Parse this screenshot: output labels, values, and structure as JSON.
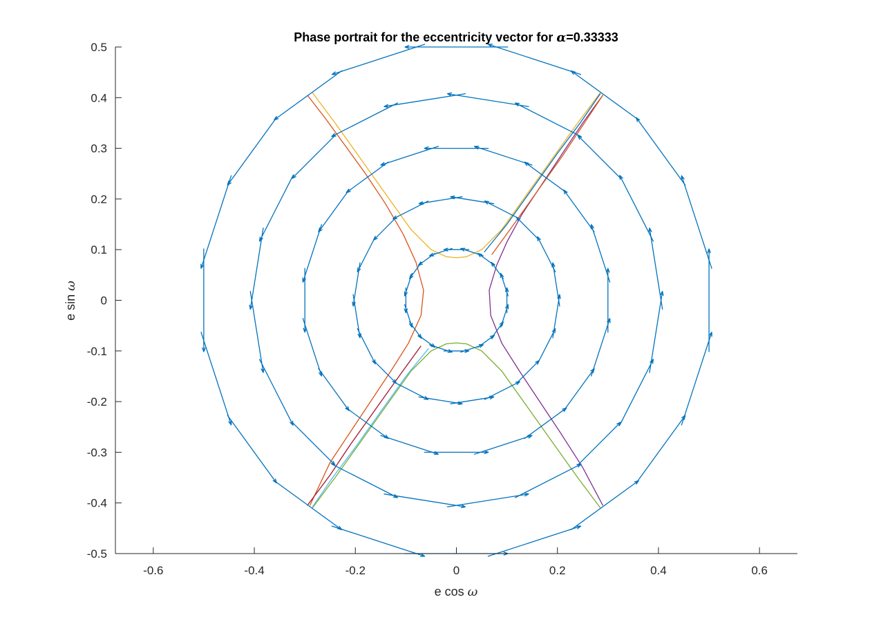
{
  "chart_data": {
    "type": "quiver",
    "title": "Phase portrait for the eccentricity vector for ",
    "title_greek": "α",
    "title_suffix": "=0.33333",
    "xlabel": "e cos ",
    "xlabel_greek": "ω",
    "ylabel": "e sin ",
    "ylabel_greek": "ω",
    "xlim": [
      -0.675,
      0.675
    ],
    "ylim": [
      -0.5,
      0.5
    ],
    "xticks": [
      -0.6,
      -0.4,
      -0.2,
      0,
      0.2,
      0.4,
      0.6
    ],
    "yticks": [
      -0.5,
      -0.4,
      -0.3,
      -0.2,
      -0.1,
      0,
      0.1,
      0.2,
      0.3,
      0.4,
      0.5
    ],
    "xtick_labels": [
      "-0.6",
      "-0.4",
      "-0.2",
      "0",
      "0.2",
      "0.4",
      "0.6"
    ],
    "ytick_labels": [
      "-0.5",
      "-0.4",
      "-0.3",
      "-0.2",
      "-0.1",
      "0",
      "0.1",
      "0.2",
      "0.3",
      "0.4",
      "0.5"
    ],
    "quiver": {
      "radii": [
        0.1,
        0.2,
        0.3,
        0.4,
        0.5
      ],
      "arrows_per_ring": 20,
      "alpha": 0.33333,
      "color": "#0072bd"
    },
    "trajectories": [
      {
        "color": "#d95319",
        "points": [
          [
            -0.295,
            0.405
          ],
          [
            -0.26,
            0.36
          ],
          [
            -0.22,
            0.305
          ],
          [
            -0.18,
            0.25
          ],
          [
            -0.14,
            0.19
          ],
          [
            -0.105,
            0.13
          ],
          [
            -0.08,
            0.075
          ],
          [
            -0.065,
            0.02
          ],
          [
            -0.07,
            -0.03
          ],
          [
            -0.095,
            -0.085
          ],
          [
            -0.13,
            -0.14
          ],
          [
            -0.17,
            -0.2
          ],
          [
            -0.21,
            -0.26
          ],
          [
            -0.25,
            -0.32
          ],
          [
            -0.29,
            -0.405
          ]
        ]
      },
      {
        "color": "#edb120",
        "points": [
          [
            -0.285,
            0.41
          ],
          [
            -0.24,
            0.35
          ],
          [
            -0.19,
            0.28
          ],
          [
            -0.14,
            0.21
          ],
          [
            -0.09,
            0.14
          ],
          [
            -0.05,
            0.1
          ],
          [
            -0.02,
            0.086
          ],
          [
            0,
            0.084
          ],
          [
            0.02,
            0.086
          ],
          [
            0.05,
            0.1
          ],
          [
            0.09,
            0.14
          ],
          [
            0.14,
            0.21
          ],
          [
            0.19,
            0.28
          ],
          [
            0.24,
            0.35
          ],
          [
            0.285,
            0.41
          ]
        ]
      },
      {
        "color": "#7e2f8e",
        "points": [
          [
            0.29,
            0.405
          ],
          [
            0.25,
            0.35
          ],
          [
            0.21,
            0.29
          ],
          [
            0.17,
            0.23
          ],
          [
            0.13,
            0.17
          ],
          [
            0.1,
            0.115
          ],
          [
            0.08,
            0.07
          ],
          [
            0.065,
            0.02
          ],
          [
            0.068,
            -0.03
          ],
          [
            0.09,
            -0.085
          ],
          [
            0.125,
            -0.14
          ],
          [
            0.165,
            -0.2
          ],
          [
            0.205,
            -0.26
          ],
          [
            0.25,
            -0.33
          ],
          [
            0.29,
            -0.405
          ]
        ]
      },
      {
        "color": "#77ac30",
        "points": [
          [
            -0.285,
            -0.41
          ],
          [
            -0.24,
            -0.35
          ],
          [
            -0.19,
            -0.28
          ],
          [
            -0.14,
            -0.21
          ],
          [
            -0.09,
            -0.14
          ],
          [
            -0.05,
            -0.1
          ],
          [
            -0.02,
            -0.086
          ],
          [
            0,
            -0.084
          ],
          [
            0.02,
            -0.086
          ],
          [
            0.05,
            -0.1
          ],
          [
            0.09,
            -0.14
          ],
          [
            0.14,
            -0.21
          ],
          [
            0.19,
            -0.28
          ],
          [
            0.24,
            -0.35
          ],
          [
            0.285,
            -0.41
          ]
        ]
      },
      {
        "color": "#0072bd",
        "points": [
          [
            0.055,
            0.095
          ],
          [
            0.1,
            0.15
          ],
          [
            0.15,
            0.22
          ],
          [
            0.2,
            0.29
          ],
          [
            0.245,
            0.35
          ],
          [
            0.285,
            0.408
          ]
        ]
      },
      {
        "color": "#d95319",
        "points": [
          [
            0.07,
            0.09
          ],
          [
            0.11,
            0.145
          ],
          [
            0.16,
            0.215
          ],
          [
            0.21,
            0.285
          ],
          [
            0.25,
            0.345
          ],
          [
            0.29,
            0.405
          ]
        ]
      },
      {
        "color": "#4dbeee",
        "points": [
          [
            -0.055,
            -0.095
          ],
          [
            -0.1,
            -0.15
          ],
          [
            -0.15,
            -0.22
          ],
          [
            -0.2,
            -0.29
          ],
          [
            -0.245,
            -0.35
          ],
          [
            -0.285,
            -0.408
          ]
        ]
      },
      {
        "color": "#a2142f",
        "points": [
          [
            -0.07,
            -0.09
          ],
          [
            -0.11,
            -0.145
          ],
          [
            -0.16,
            -0.215
          ],
          [
            -0.21,
            -0.285
          ],
          [
            -0.25,
            -0.345
          ],
          [
            -0.295,
            -0.405
          ]
        ]
      }
    ]
  }
}
